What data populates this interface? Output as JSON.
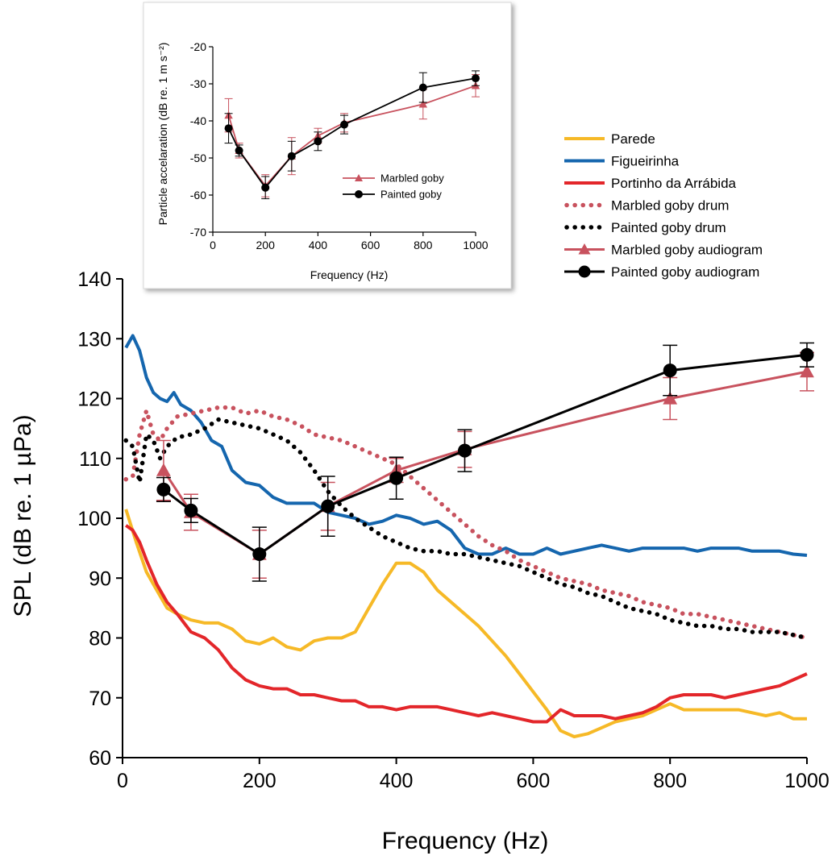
{
  "colors": {
    "parede": "#F6B927",
    "figueirinha": "#1566AE",
    "portinho": "#E3262A",
    "marbled": "#C8525E",
    "painted": "#000000",
    "axis": "#000000"
  },
  "chart_data": [
    {
      "id": "main",
      "type": "line",
      "title": "",
      "xlabel": "Frequency (Hz)",
      "ylabel": "SPL (dB re. 1 µPa)",
      "xlim": [
        0,
        1000
      ],
      "ylim": [
        60,
        140
      ],
      "xticks": [
        0,
        200,
        400,
        600,
        800,
        1000
      ],
      "yticks": [
        60,
        70,
        80,
        90,
        100,
        110,
        120,
        130,
        140
      ],
      "grid": false,
      "legend_position": "top-right",
      "series": [
        {
          "name": "Parede",
          "style": "solid",
          "color_key": "parede",
          "x": [
            5,
            20,
            35,
            50,
            65,
            80,
            100,
            120,
            140,
            160,
            180,
            200,
            220,
            240,
            260,
            280,
            300,
            320,
            340,
            360,
            380,
            400,
            420,
            440,
            460,
            480,
            500,
            520,
            540,
            560,
            580,
            600,
            620,
            640,
            660,
            680,
            700,
            720,
            740,
            760,
            780,
            800,
            820,
            840,
            860,
            880,
            900,
            920,
            940,
            960,
            980,
            1000
          ],
          "y": [
            101.5,
            96,
            91,
            88,
            85,
            84,
            83,
            82.5,
            82.5,
            81.5,
            79.5,
            79,
            80,
            78.5,
            78,
            79.5,
            80,
            80,
            81,
            85,
            89,
            92.5,
            92.5,
            91,
            88,
            86,
            84,
            82,
            79.5,
            77,
            74,
            71,
            68,
            64.5,
            63.5,
            64,
            65,
            66,
            66.5,
            67,
            68,
            69,
            68,
            68,
            68,
            68,
            68,
            67.5,
            67,
            67.5,
            66.5,
            66.5
          ]
        },
        {
          "name": "Figueirinha",
          "style": "solid",
          "color_key": "figueirinha",
          "x": [
            5,
            15,
            25,
            35,
            45,
            55,
            65,
            75,
            85,
            100,
            115,
            130,
            145,
            160,
            180,
            200,
            220,
            240,
            260,
            280,
            300,
            320,
            340,
            360,
            380,
            400,
            420,
            440,
            460,
            480,
            500,
            520,
            540,
            560,
            580,
            600,
            620,
            640,
            660,
            680,
            700,
            720,
            740,
            760,
            780,
            800,
            820,
            840,
            860,
            880,
            900,
            920,
            940,
            960,
            980,
            1000
          ],
          "y": [
            128.5,
            130.5,
            128,
            123.5,
            121,
            120,
            119.5,
            121,
            119,
            118,
            116,
            113,
            112,
            108,
            106,
            105.5,
            103.5,
            102.5,
            102.5,
            102.5,
            101,
            100.5,
            100,
            99,
            99.5,
            100.5,
            100,
            99,
            99.5,
            98,
            95,
            94,
            94,
            95,
            94,
            94,
            95,
            94,
            94.5,
            95,
            95.5,
            95,
            94.5,
            95,
            95,
            95,
            95,
            94.5,
            95,
            95,
            95,
            94.5,
            94.5,
            94.5,
            94,
            93.8
          ]
        },
        {
          "name": "Portinho da Arrábida",
          "style": "solid",
          "color_key": "portinho",
          "x": [
            5,
            15,
            25,
            35,
            50,
            65,
            80,
            100,
            120,
            140,
            160,
            180,
            200,
            220,
            240,
            260,
            280,
            300,
            320,
            340,
            360,
            380,
            400,
            420,
            440,
            460,
            480,
            500,
            520,
            540,
            560,
            580,
            600,
            620,
            640,
            660,
            680,
            700,
            720,
            740,
            760,
            780,
            800,
            820,
            840,
            860,
            880,
            900,
            920,
            940,
            960,
            980,
            1000
          ],
          "y": [
            98.8,
            98,
            96,
            93,
            89,
            86,
            84,
            81,
            80,
            78,
            75,
            73,
            72,
            71.5,
            71.5,
            70.5,
            70.5,
            70,
            69.5,
            69.5,
            68.5,
            68.5,
            68,
            68.5,
            68.5,
            68.5,
            68,
            67.5,
            67,
            67.5,
            67,
            66.5,
            66,
            66,
            68,
            67,
            67,
            67,
            66.5,
            67,
            67.5,
            68.5,
            70,
            70.5,
            70.5,
            70.5,
            70,
            70.5,
            71,
            71.5,
            72,
            73,
            74
          ]
        },
        {
          "name": "Marbled goby drum",
          "style": "dotted",
          "color_key": "marbled",
          "x": [
            5,
            15,
            25,
            35,
            45,
            55,
            65,
            80,
            100,
            120,
            140,
            160,
            180,
            200,
            220,
            240,
            260,
            280,
            300,
            320,
            340,
            360,
            380,
            400,
            420,
            440,
            460,
            480,
            500,
            520,
            540,
            560,
            580,
            600,
            620,
            640,
            660,
            680,
            700,
            720,
            740,
            760,
            780,
            800,
            820,
            840,
            860,
            880,
            900,
            920,
            940,
            960,
            980,
            1000
          ],
          "y": [
            106.5,
            107,
            114,
            118,
            114,
            113,
            115,
            117,
            117.5,
            118,
            118.5,
            118.5,
            117.5,
            118,
            117,
            116.5,
            115.5,
            114,
            113.5,
            113,
            112,
            111,
            110,
            109,
            107,
            105,
            103,
            101,
            99,
            97,
            95.5,
            94.5,
            93,
            92,
            91,
            90,
            89.5,
            89,
            88,
            87.5,
            87,
            86,
            85.5,
            85,
            84,
            84,
            83.5,
            83,
            82.5,
            82,
            81.5,
            81,
            80.5,
            80
          ]
        },
        {
          "name": "Painted goby drum",
          "style": "dotted",
          "color_key": "painted",
          "x": [
            5,
            15,
            25,
            35,
            45,
            55,
            65,
            80,
            100,
            120,
            140,
            160,
            180,
            200,
            220,
            240,
            260,
            280,
            300,
            320,
            340,
            360,
            380,
            400,
            420,
            440,
            460,
            480,
            500,
            520,
            540,
            560,
            580,
            600,
            620,
            640,
            660,
            680,
            700,
            720,
            740,
            760,
            780,
            800,
            820,
            840,
            860,
            880,
            900,
            920,
            940,
            960,
            980,
            1000
          ],
          "y": [
            113,
            112,
            106,
            114,
            113,
            110,
            112,
            113.5,
            114,
            115,
            116.5,
            116,
            115.5,
            115,
            114,
            113,
            111,
            108,
            104.5,
            102,
            100,
            98.5,
            97,
            96,
            95,
            94.5,
            94.5,
            94,
            94,
            93.5,
            93,
            92.5,
            92,
            91,
            90,
            89,
            88.5,
            87.5,
            87,
            86,
            85,
            84.5,
            84,
            83,
            82.5,
            82,
            82,
            81.5,
            81.5,
            81,
            81,
            81,
            80.5,
            80
          ]
        },
        {
          "name": "Marbled goby audiogram",
          "style": "solid-triangle",
          "color_key": "marbled",
          "x": [
            60,
            100,
            200,
            300,
            400,
            500,
            800,
            1000
          ],
          "y": [
            108,
            101,
            94,
            102,
            108,
            111.5,
            120,
            124.5
          ],
          "err": [
            5,
            3,
            4,
            4,
            2,
            3,
            3.5,
            3.2
          ]
        },
        {
          "name": "Painted goby audiogram",
          "style": "solid-circle",
          "color_key": "painted",
          "x": [
            60,
            100,
            200,
            300,
            400,
            500,
            800,
            1000
          ],
          "y": [
            104.8,
            101.3,
            94,
            102,
            106.7,
            111.3,
            124.7,
            127.3
          ],
          "err": [
            2,
            2,
            4.5,
            5,
            3.5,
            3.5,
            4.2,
            2
          ]
        }
      ]
    },
    {
      "id": "inset",
      "type": "line",
      "title": "",
      "xlabel": "Frequency (Hz)",
      "ylabel": "Particle accelaration (dB re. 1 m s⁻²)",
      "xlim": [
        0,
        1000
      ],
      "ylim": [
        -70,
        -20
      ],
      "xticks": [
        0,
        200,
        400,
        600,
        800,
        1000
      ],
      "yticks": [
        -70,
        -60,
        -50,
        -40,
        -30,
        -20
      ],
      "grid": false,
      "legend_position": "bottom-right",
      "series": [
        {
          "name": "Marbled goby",
          "style": "solid-triangle",
          "color_key": "marbled",
          "x": [
            60,
            100,
            200,
            300,
            400,
            500,
            800,
            1000
          ],
          "y": [
            -38.5,
            -48,
            -57.5,
            -49.5,
            -44,
            -40.5,
            -35.5,
            -30.5
          ],
          "err": [
            4.5,
            2,
            3,
            5,
            2,
            2.5,
            4,
            3
          ]
        },
        {
          "name": "Painted goby",
          "style": "solid-circle",
          "color_key": "painted",
          "x": [
            60,
            100,
            200,
            300,
            400,
            500,
            800,
            1000
          ],
          "y": [
            -42,
            -48,
            -58,
            -49.5,
            -45.5,
            -41,
            -31,
            -28.5
          ],
          "err": [
            4,
            1.5,
            3,
            4,
            2.5,
            2.5,
            4,
            2
          ]
        }
      ]
    }
  ]
}
